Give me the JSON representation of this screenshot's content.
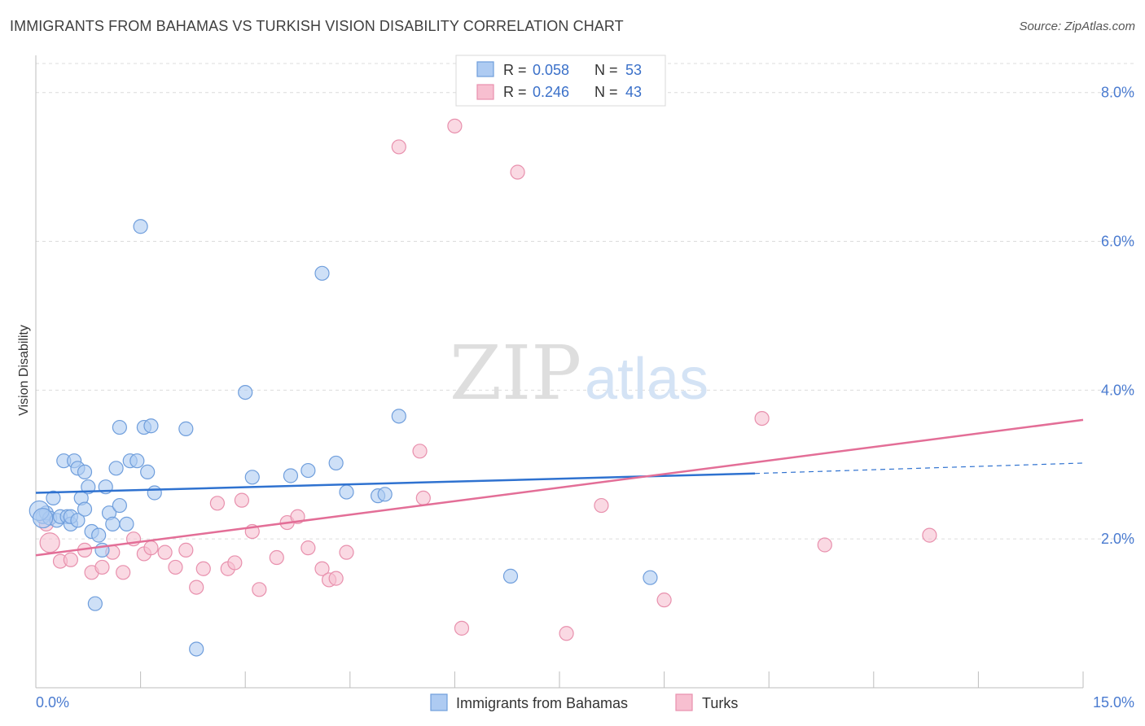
{
  "title": "IMMIGRANTS FROM BAHAMAS VS TURKISH VISION DISABILITY CORRELATION CHART",
  "source": "Source: ZipAtlas.com",
  "watermark": {
    "zip": "ZIP",
    "atlas": "atlas"
  },
  "colors": {
    "blue_fill": "#aecbf2",
    "blue_stroke": "#6f9edc",
    "blue_line": "#2f72d0",
    "pink_fill": "#f7bfd0",
    "pink_stroke": "#e890ad",
    "pink_line": "#e36e97"
  },
  "legend": {
    "rows": [
      {
        "r_label": "R =",
        "r_value": "0.058",
        "n_label": "N =",
        "n_value": "53"
      },
      {
        "r_label": "R =",
        "r_value": "0.246",
        "n_label": "N =",
        "n_value": "43"
      }
    ]
  },
  "bottom_legend": [
    "Immigrants from Bahamas",
    "Turks"
  ],
  "chart_data": {
    "type": "scatter",
    "title": "IMMIGRANTS FROM BAHAMAS VS TURKISH VISION DISABILITY CORRELATION CHART",
    "xlabel": "",
    "ylabel": "Vision Disability",
    "xlim": [
      0,
      15
    ],
    "ylim": [
      0,
      8.5
    ],
    "x_tick_labels": [
      "0.0%",
      "15.0%"
    ],
    "y_ticks": [
      2,
      4,
      6,
      8
    ],
    "y_tick_labels": [
      "2.0%",
      "4.0%",
      "6.0%",
      "8.0%"
    ],
    "grid": "horizontal dashed",
    "legend_position": "top-center",
    "series": [
      {
        "name": "Immigrants from Bahamas",
        "r": 0.058,
        "n": 53,
        "trend": {
          "x": [
            0,
            10.3
          ],
          "y": [
            2.62,
            2.88
          ],
          "dashed_extension": {
            "x": [
              10.3,
              15
            ],
            "y": [
              2.88,
              3.02
            ]
          }
        },
        "points": [
          [
            0.1,
            2.3
          ],
          [
            0.15,
            2.35
          ],
          [
            0.2,
            2.28
          ],
          [
            0.25,
            2.55
          ],
          [
            0.3,
            2.25
          ],
          [
            0.35,
            2.3
          ],
          [
            0.4,
            3.05
          ],
          [
            0.45,
            2.3
          ],
          [
            0.5,
            2.2
          ],
          [
            0.5,
            2.3
          ],
          [
            0.55,
            3.05
          ],
          [
            0.6,
            2.25
          ],
          [
            0.6,
            2.95
          ],
          [
            0.65,
            2.55
          ],
          [
            0.7,
            2.9
          ],
          [
            0.7,
            2.4
          ],
          [
            0.75,
            2.7
          ],
          [
            0.8,
            2.1
          ],
          [
            0.85,
            1.13
          ],
          [
            0.9,
            2.05
          ],
          [
            0.95,
            1.85
          ],
          [
            1.0,
            2.7
          ],
          [
            1.05,
            2.35
          ],
          [
            1.1,
            2.2
          ],
          [
            1.15,
            2.95
          ],
          [
            1.2,
            2.45
          ],
          [
            1.2,
            3.5
          ],
          [
            1.3,
            2.2
          ],
          [
            1.35,
            3.05
          ],
          [
            1.45,
            3.05
          ],
          [
            1.5,
            6.2
          ],
          [
            1.55,
            3.5
          ],
          [
            1.6,
            2.9
          ],
          [
            1.65,
            3.52
          ],
          [
            1.7,
            2.62
          ],
          [
            2.15,
            3.48
          ],
          [
            2.3,
            0.52
          ],
          [
            3.0,
            3.97
          ],
          [
            3.1,
            2.83
          ],
          [
            3.65,
            2.85
          ],
          [
            3.9,
            2.92
          ],
          [
            4.1,
            5.57
          ],
          [
            4.3,
            3.02
          ],
          [
            4.45,
            2.63
          ],
          [
            4.9,
            2.58
          ],
          [
            5.0,
            2.6
          ],
          [
            5.2,
            3.65
          ],
          [
            6.8,
            1.5
          ],
          [
            8.8,
            1.48
          ]
        ],
        "large_points": [
          [
            0.05,
            2.38
          ],
          [
            0.1,
            2.28
          ]
        ]
      },
      {
        "name": "Turks",
        "r": 0.246,
        "n": 43,
        "trend": {
          "x": [
            0,
            15
          ],
          "y": [
            1.78,
            3.6
          ]
        },
        "points": [
          [
            0.15,
            2.2
          ],
          [
            0.35,
            1.7
          ],
          [
            0.5,
            1.72
          ],
          [
            0.7,
            1.85
          ],
          [
            0.8,
            1.55
          ],
          [
            0.95,
            1.62
          ],
          [
            1.1,
            1.82
          ],
          [
            1.25,
            1.55
          ],
          [
            1.4,
            2.0
          ],
          [
            1.55,
            1.8
          ],
          [
            1.65,
            1.88
          ],
          [
            1.85,
            1.82
          ],
          [
            2.0,
            1.62
          ],
          [
            2.15,
            1.85
          ],
          [
            2.3,
            1.35
          ],
          [
            2.4,
            1.6
          ],
          [
            2.6,
            2.48
          ],
          [
            2.75,
            1.6
          ],
          [
            2.85,
            1.68
          ],
          [
            2.95,
            2.52
          ],
          [
            3.1,
            2.1
          ],
          [
            3.2,
            1.32
          ],
          [
            3.45,
            1.75
          ],
          [
            3.6,
            2.22
          ],
          [
            3.75,
            2.3
          ],
          [
            3.9,
            1.88
          ],
          [
            4.1,
            1.6
          ],
          [
            4.2,
            1.45
          ],
          [
            4.3,
            1.47
          ],
          [
            4.45,
            1.82
          ],
          [
            5.2,
            7.27
          ],
          [
            5.5,
            3.18
          ],
          [
            5.55,
            2.55
          ],
          [
            6.0,
            7.55
          ],
          [
            6.1,
            0.8
          ],
          [
            6.9,
            6.93
          ],
          [
            7.6,
            0.73
          ],
          [
            8.1,
            2.45
          ],
          [
            9.0,
            1.18
          ],
          [
            10.4,
            3.62
          ],
          [
            11.3,
            1.92
          ],
          [
            12.8,
            2.05
          ]
        ],
        "large_points": [
          [
            0.2,
            1.95
          ]
        ]
      }
    ]
  }
}
